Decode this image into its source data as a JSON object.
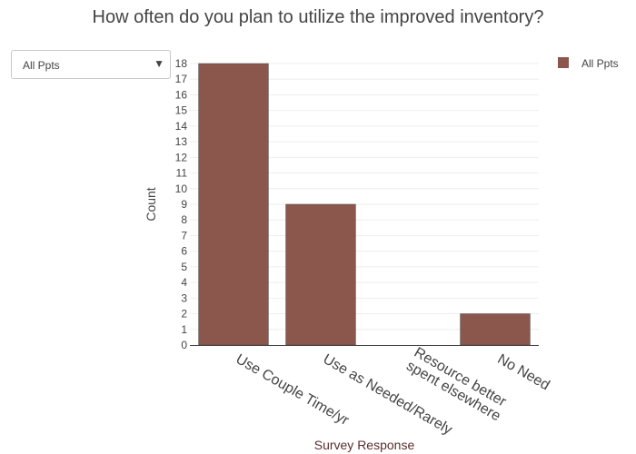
{
  "filter": {
    "selected": "All Ppts",
    "arrow_icon": "triangle-down-icon"
  },
  "colors": {
    "bar": "#8b564b",
    "axis": "#444444",
    "grid": "#eeeeee",
    "xlabel": "#5b2d2d"
  },
  "chart_data": {
    "type": "bar",
    "title": "How often do you plan to utilize the improved inventory?",
    "xlabel": "Survey Response",
    "ylabel": "Count",
    "categories": [
      [
        "Use Couple Time/yr"
      ],
      [
        "Use as Needed/Rarely"
      ],
      [
        "Resource better",
        "spent elsewhere"
      ],
      [
        "No Need"
      ]
    ],
    "series": [
      {
        "name": "All Ppts",
        "values": [
          18,
          9,
          0,
          2
        ]
      }
    ],
    "ylim": [
      0,
      18
    ],
    "yticks": [
      "0",
      "1",
      "2",
      "3",
      "4",
      "5",
      "6",
      "7",
      "8",
      "9",
      "10",
      "11",
      "12",
      "13",
      "14",
      "15",
      "16",
      "17",
      "18"
    ],
    "grid": true,
    "legend": "top-right"
  }
}
